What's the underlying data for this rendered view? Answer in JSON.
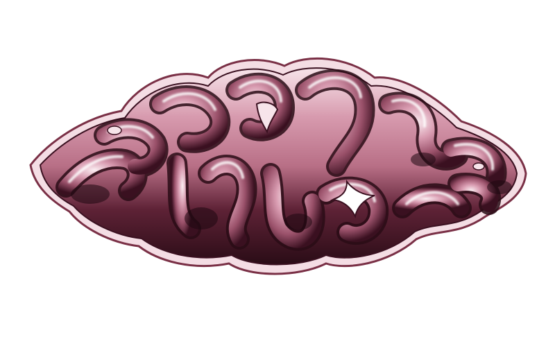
{
  "artwork": {
    "subject": "",
    "colors": {
      "background": "#ffffff",
      "base": "#b86f86",
      "highlight": "#f7e4ea",
      "shadow": "#2a0c16",
      "mid": "#8f4a61"
    }
  }
}
